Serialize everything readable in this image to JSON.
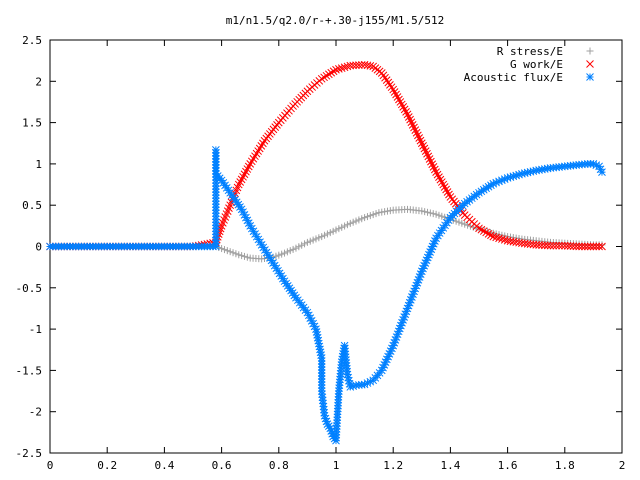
{
  "chart_data": {
    "type": "scatter",
    "title": "m1/n1.5/q2.0/r-+.30-j155/M1.5/512",
    "xlabel": "",
    "ylabel": "",
    "xlim": [
      0,
      2
    ],
    "ylim": [
      -2.5,
      2.5
    ],
    "xticks": [
      "0",
      "0.2",
      "0.4",
      "0.6",
      "0.8",
      "1",
      "1.2",
      "1.4",
      "1.6",
      "1.8",
      "2"
    ],
    "yticks": [
      "2.5",
      "2",
      "1.5",
      "1",
      "0.5",
      "0",
      "-0.5",
      "-1",
      "-1.5",
      "-2",
      "-2.5"
    ],
    "legend_position": "top-right",
    "grid": false,
    "series": [
      {
        "name": "R stress/E",
        "marker": "plus",
        "color": "#a0a0a0",
        "x": [
          0.0,
          0.1,
          0.2,
          0.3,
          0.4,
          0.5,
          0.58,
          0.62,
          0.66,
          0.7,
          0.74,
          0.78,
          0.82,
          0.86,
          0.9,
          0.95,
          1.0,
          1.05,
          1.1,
          1.15,
          1.2,
          1.25,
          1.3,
          1.35,
          1.4,
          1.45,
          1.5,
          1.55,
          1.6,
          1.65,
          1.7,
          1.75,
          1.8,
          1.85,
          1.9,
          1.93
        ],
        "y": [
          0.0,
          0.0,
          0.0,
          0.0,
          0.0,
          0.0,
          0.0,
          -0.05,
          -0.1,
          -0.14,
          -0.15,
          -0.13,
          -0.08,
          -0.02,
          0.05,
          0.12,
          0.2,
          0.28,
          0.35,
          0.41,
          0.44,
          0.45,
          0.43,
          0.39,
          0.33,
          0.27,
          0.21,
          0.16,
          0.12,
          0.09,
          0.07,
          0.05,
          0.04,
          0.03,
          0.02,
          0.02
        ]
      },
      {
        "name": "G work/E",
        "marker": "cross",
        "color": "#ff0000",
        "x": [
          0.0,
          0.1,
          0.2,
          0.3,
          0.4,
          0.5,
          0.58,
          0.6,
          0.63,
          0.66,
          0.7,
          0.75,
          0.8,
          0.85,
          0.9,
          0.95,
          1.0,
          1.05,
          1.1,
          1.13,
          1.16,
          1.2,
          1.25,
          1.3,
          1.35,
          1.4,
          1.45,
          1.5,
          1.55,
          1.6,
          1.65,
          1.7,
          1.75,
          1.8,
          1.85,
          1.9,
          1.93
        ],
        "y": [
          0.0,
          0.0,
          0.0,
          0.0,
          0.0,
          0.0,
          0.05,
          0.25,
          0.5,
          0.75,
          1.0,
          1.28,
          1.5,
          1.7,
          1.88,
          2.03,
          2.14,
          2.19,
          2.2,
          2.18,
          2.1,
          1.9,
          1.6,
          1.25,
          0.9,
          0.6,
          0.38,
          0.22,
          0.12,
          0.07,
          0.04,
          0.02,
          0.01,
          0.01,
          0.0,
          0.0,
          0.0
        ]
      },
      {
        "name": "Acoustic flux/E",
        "marker": "star",
        "color": "#0080ff",
        "x": [
          0.0,
          0.1,
          0.2,
          0.3,
          0.4,
          0.5,
          0.58,
          0.58,
          0.58,
          0.6,
          0.63,
          0.67,
          0.7,
          0.74,
          0.78,
          0.82,
          0.86,
          0.9,
          0.93,
          0.95,
          0.95,
          0.96,
          0.97,
          0.98,
          0.99,
          1.0,
          1.01,
          1.02,
          1.03,
          1.04,
          1.05,
          1.07,
          1.1,
          1.13,
          1.16,
          1.2,
          1.25,
          1.3,
          1.35,
          1.4,
          1.45,
          1.5,
          1.55,
          1.6,
          1.65,
          1.7,
          1.75,
          1.8,
          1.85,
          1.88,
          1.9,
          1.92,
          1.93
        ],
        "y": [
          0.0,
          0.0,
          0.0,
          0.0,
          0.0,
          0.0,
          0.0,
          1.17,
          0.88,
          0.8,
          0.65,
          0.45,
          0.25,
          0.02,
          -0.2,
          -0.42,
          -0.62,
          -0.8,
          -1.0,
          -1.35,
          -1.75,
          -2.05,
          -2.15,
          -2.2,
          -2.3,
          -2.35,
          -1.75,
          -1.4,
          -1.2,
          -1.55,
          -1.7,
          -1.68,
          -1.67,
          -1.62,
          -1.5,
          -1.2,
          -0.75,
          -0.3,
          0.1,
          0.35,
          0.52,
          0.65,
          0.76,
          0.83,
          0.88,
          0.92,
          0.95,
          0.97,
          0.99,
          1.0,
          1.0,
          0.97,
          0.9
        ]
      }
    ]
  }
}
